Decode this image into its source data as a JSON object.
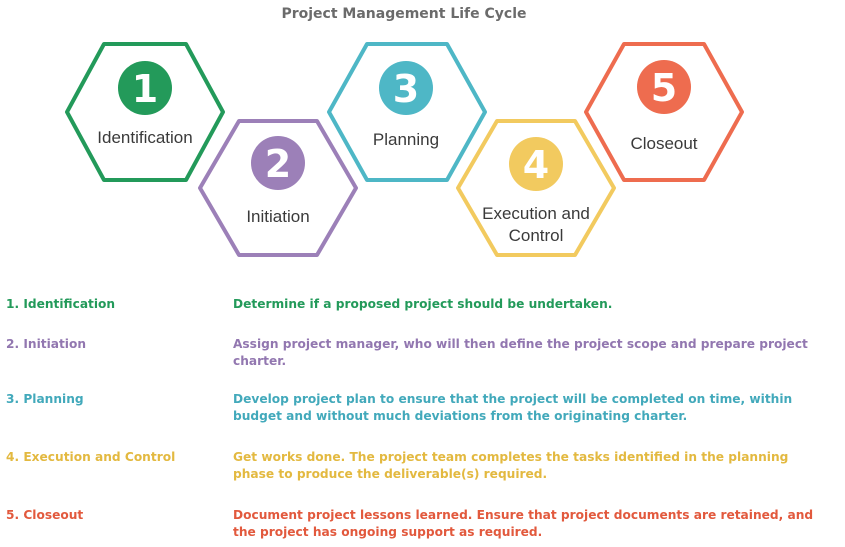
{
  "title": "Project Management Life Cycle",
  "colors": {
    "identification": "#239a5a",
    "initiation": "#9c80b8",
    "planning": "#4eb7c6",
    "execution": "#f2ca5f",
    "closeout": "#ee6c4f"
  },
  "text_colors": {
    "identification": "#239a5a",
    "initiation": "#9277b0",
    "planning": "#42a9bb",
    "execution": "#e3b940",
    "closeout": "#e2593d"
  },
  "hexagons": [
    {
      "number": "1",
      "label_lines": [
        "Identification"
      ]
    },
    {
      "number": "2",
      "label_lines": [
        "Initiation"
      ]
    },
    {
      "number": "3",
      "label_lines": [
        "Planning"
      ]
    },
    {
      "number": "4",
      "label_lines": [
        "Execution and",
        "Control"
      ]
    },
    {
      "number": "5",
      "label_lines": [
        "Closeout"
      ]
    }
  ],
  "steps": [
    {
      "name": "1. Identification",
      "description": "Determine if a proposed project should be undertaken."
    },
    {
      "name": "2. Initiation",
      "description": "Assign project manager, who will then define the project scope and prepare project charter."
    },
    {
      "name": "3. Planning",
      "description": "Develop project plan to ensure that the project will be completed on time, within budget and without much deviations from the originating charter."
    },
    {
      "name": "4. Execution and Control",
      "description": "Get works done. The project team completes the tasks identified in the planning phase to produce the deliverable(s) required."
    },
    {
      "name": "5. Closeout",
      "description": "Document project lessons learned. Ensure that project documents are retained, and the project has ongoing support as required."
    }
  ]
}
